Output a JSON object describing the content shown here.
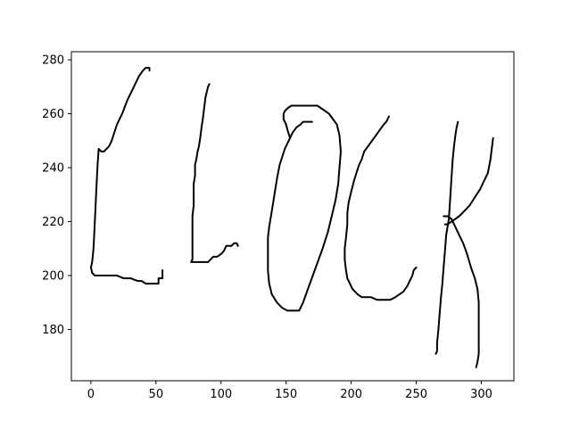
{
  "chart_data": {
    "type": "line",
    "title": "",
    "xlabel": "",
    "ylabel": "",
    "xlim": [
      -15,
      325
    ],
    "ylim": [
      161,
      283
    ],
    "xticks": [
      0,
      50,
      100,
      150,
      200,
      250,
      300
    ],
    "yticks": [
      180,
      200,
      220,
      240,
      260,
      280
    ],
    "grid": false,
    "legend": "none",
    "line_color": "#000000",
    "series": [
      {
        "points": [
          [
            45,
            276
          ],
          [
            45,
            277
          ],
          [
            44,
            277
          ],
          [
            42,
            277
          ],
          [
            40,
            276
          ],
          [
            37,
            274
          ],
          [
            34,
            271
          ],
          [
            31,
            268
          ],
          [
            28,
            265
          ],
          [
            24,
            260
          ],
          [
            20,
            256
          ],
          [
            18,
            253
          ],
          [
            16,
            250
          ],
          [
            14,
            248
          ],
          [
            12,
            247
          ],
          [
            10,
            246
          ],
          [
            8,
            246
          ],
          [
            6,
            247
          ],
          [
            5,
            240
          ],
          [
            4,
            230
          ],
          [
            3,
            220
          ],
          [
            2,
            210
          ],
          [
            1,
            205
          ],
          [
            0,
            203
          ],
          [
            1,
            201
          ],
          [
            3,
            200
          ],
          [
            5,
            200
          ],
          [
            10,
            200
          ],
          [
            15,
            200
          ],
          [
            20,
            200
          ],
          [
            25,
            199
          ],
          [
            28,
            199
          ],
          [
            31,
            199
          ],
          [
            33,
            198.5
          ],
          [
            36,
            198
          ],
          [
            39,
            198
          ],
          [
            42,
            197
          ],
          [
            45,
            197
          ],
          [
            50,
            197
          ],
          [
            52,
            197
          ],
          [
            52,
            199
          ],
          [
            55,
            199
          ],
          [
            55,
            202
          ]
        ]
      },
      {
        "points": [
          [
            91,
            271
          ],
          [
            90,
            270
          ],
          [
            89,
            268
          ],
          [
            88,
            266
          ],
          [
            87,
            262
          ],
          [
            86,
            258
          ],
          [
            85,
            255
          ],
          [
            84,
            251
          ],
          [
            83,
            248
          ],
          [
            82,
            246
          ],
          [
            81,
            243
          ],
          [
            80,
            241
          ],
          [
            80,
            237
          ],
          [
            79,
            234
          ],
          [
            79,
            230
          ],
          [
            79,
            226
          ],
          [
            78,
            222
          ],
          [
            78,
            218
          ],
          [
            78,
            214
          ],
          [
            78,
            210
          ],
          [
            78,
            206
          ],
          [
            77,
            205
          ],
          [
            79,
            205
          ],
          [
            84,
            205
          ],
          [
            87,
            205
          ],
          [
            90,
            205
          ],
          [
            92,
            206
          ],
          [
            94,
            207
          ],
          [
            97,
            207
          ],
          [
            100,
            208
          ],
          [
            102,
            209
          ],
          [
            104,
            211
          ],
          [
            106,
            211
          ],
          [
            108,
            211
          ],
          [
            110,
            212
          ],
          [
            112,
            212
          ],
          [
            113,
            211
          ]
        ]
      },
      {
        "points": [
          [
            153,
            251
          ],
          [
            151,
            254
          ],
          [
            150,
            256
          ],
          [
            149,
            257
          ],
          [
            148,
            258
          ],
          [
            148,
            260
          ],
          [
            149,
            261
          ],
          [
            151,
            262
          ],
          [
            154,
            263
          ],
          [
            158,
            263
          ],
          [
            163,
            263
          ],
          [
            168,
            263
          ],
          [
            174,
            263
          ],
          [
            177,
            262
          ],
          [
            180,
            261
          ],
          [
            183,
            260
          ],
          [
            186,
            258
          ],
          [
            189,
            256
          ],
          [
            191,
            252
          ],
          [
            192,
            246
          ],
          [
            191,
            240
          ],
          [
            190,
            234
          ],
          [
            188,
            228
          ],
          [
            185,
            222
          ],
          [
            182,
            216
          ],
          [
            178,
            210
          ],
          [
            175,
            206
          ],
          [
            172,
            202
          ],
          [
            169,
            198
          ],
          [
            166,
            194
          ],
          [
            163,
            190
          ],
          [
            160,
            187
          ],
          [
            156,
            187
          ],
          [
            151,
            187
          ],
          [
            147,
            188
          ],
          [
            143,
            190
          ],
          [
            139,
            193
          ],
          [
            137,
            197
          ],
          [
            136,
            202
          ],
          [
            136,
            208
          ],
          [
            136,
            214
          ],
          [
            137,
            218
          ],
          [
            139,
            224
          ],
          [
            141,
            230
          ],
          [
            143,
            236
          ],
          [
            145,
            241
          ],
          [
            147,
            244
          ],
          [
            149,
            247
          ],
          [
            151,
            249
          ],
          [
            153,
            251
          ],
          [
            155,
            253
          ],
          [
            158,
            255
          ],
          [
            161,
            256
          ],
          [
            163,
            257
          ],
          [
            166,
            257
          ],
          [
            170,
            257
          ]
        ]
      },
      {
        "points": [
          [
            229,
            259
          ],
          [
            227,
            257
          ],
          [
            225,
            256
          ],
          [
            222,
            254
          ],
          [
            219,
            252
          ],
          [
            216,
            250
          ],
          [
            213,
            248
          ],
          [
            210,
            246
          ],
          [
            208,
            243
          ],
          [
            206,
            241
          ],
          [
            204,
            238
          ],
          [
            202,
            235
          ],
          [
            200,
            231
          ],
          [
            198,
            227
          ],
          [
            197,
            223
          ],
          [
            197,
            219
          ],
          [
            196,
            214
          ],
          [
            195,
            210
          ],
          [
            195,
            206
          ],
          [
            196,
            202
          ],
          [
            197,
            199
          ],
          [
            199,
            197
          ],
          [
            201,
            195
          ],
          [
            203,
            194
          ],
          [
            205,
            193
          ],
          [
            208,
            192
          ],
          [
            211,
            192
          ],
          [
            215,
            192
          ],
          [
            220,
            191
          ],
          [
            225,
            191
          ],
          [
            230,
            191
          ],
          [
            234,
            192
          ],
          [
            237,
            193
          ],
          [
            240,
            194
          ],
          [
            243,
            196
          ],
          [
            245,
            198
          ],
          [
            247,
            200
          ],
          [
            248,
            202
          ],
          [
            250,
            203
          ]
        ]
      },
      {
        "points": [
          [
            282,
            257
          ],
          [
            281,
            255
          ],
          [
            280,
            252
          ],
          [
            279,
            248
          ],
          [
            278,
            243
          ],
          [
            277,
            236
          ],
          [
            276,
            228
          ],
          [
            275,
            221
          ],
          [
            273,
            215
          ],
          [
            272,
            209
          ],
          [
            271,
            203
          ],
          [
            270,
            197
          ],
          [
            269,
            192
          ],
          [
            268,
            186
          ],
          [
            267,
            180
          ],
          [
            266,
            175
          ],
          [
            266,
            172
          ],
          [
            265,
            171
          ]
        ]
      },
      {
        "points": [
          [
            309,
            251
          ],
          [
            308,
            247
          ],
          [
            307,
            243
          ],
          [
            305,
            238
          ],
          [
            302,
            235
          ],
          [
            299,
            232
          ],
          [
            295,
            229
          ],
          [
            291,
            226
          ],
          [
            287,
            224
          ],
          [
            283,
            222
          ],
          [
            280,
            221
          ],
          [
            277,
            220
          ],
          [
            274,
            219
          ],
          [
            272,
            219
          ]
        ]
      },
      {
        "points": [
          [
            271,
            222
          ],
          [
            274,
            222
          ],
          [
            277,
            221
          ],
          [
            280,
            218
          ],
          [
            283,
            215
          ],
          [
            286,
            212
          ],
          [
            289,
            208
          ],
          [
            292,
            203
          ],
          [
            295,
            199
          ],
          [
            297,
            195
          ],
          [
            298,
            190
          ],
          [
            298,
            185
          ],
          [
            298,
            180
          ],
          [
            298,
            175
          ],
          [
            298,
            171
          ],
          [
            297,
            168
          ],
          [
            296,
            166
          ]
        ]
      }
    ]
  }
}
